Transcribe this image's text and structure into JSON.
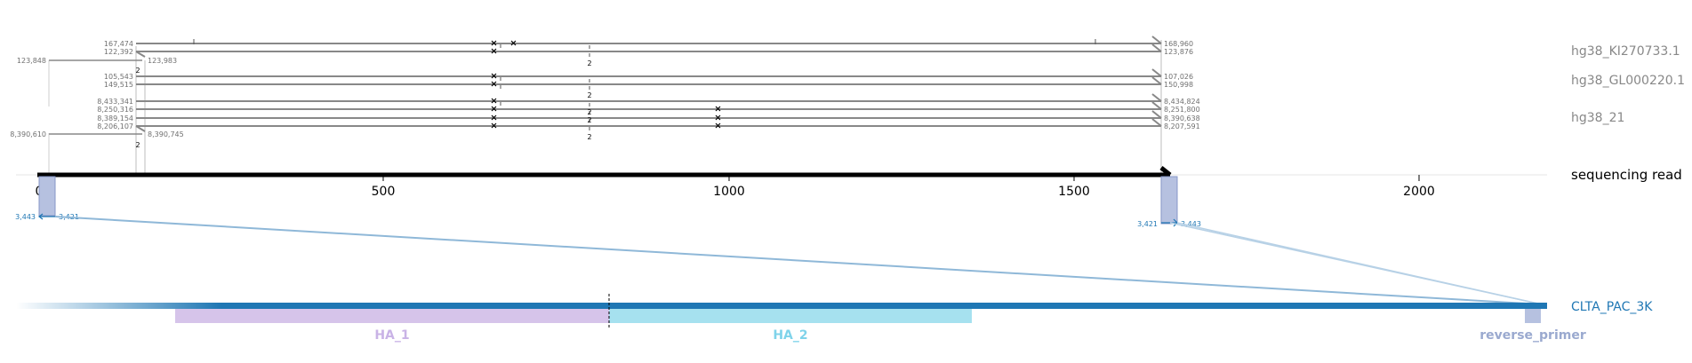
{
  "axis": {
    "ticks": [
      "0",
      "500",
      "1000",
      "1500",
      "2000"
    ],
    "read_label": "sequencing read"
  },
  "references": [
    {
      "name": "hg38_KI270733.1",
      "alignments": [
        {
          "start": "167,474",
          "end": "168,960"
        },
        {
          "start": "122,392",
          "end": "123,876"
        }
      ],
      "connector": {
        "start": "123,848",
        "end": "123,983",
        "count": "2"
      }
    },
    {
      "name": "hg38_GL000220.1",
      "alignments": [
        {
          "start": "105,543",
          "end": "107,026"
        },
        {
          "start": "149,515",
          "end": "150,998"
        }
      ]
    },
    {
      "name": "hg38_21",
      "alignments": [
        {
          "start": "8,433,341",
          "end": "8,434,824"
        },
        {
          "start": "8,250,316",
          "end": "8,251,800"
        },
        {
          "start": "8,389,154",
          "end": "8,390,638"
        },
        {
          "start": "8,206,107",
          "end": "8,207,591"
        }
      ],
      "connector": {
        "start": "8,390,610",
        "end": "8,390,745",
        "count": "2"
      }
    }
  ],
  "mismatch_count_labels": [
    "2",
    "2",
    "2",
    "2",
    "2"
  ],
  "primer_hits": {
    "left": {
      "a": "3,443",
      "b": "3,421"
    },
    "right": {
      "a": "3,421",
      "b": "3,443"
    }
  },
  "target": {
    "name": "CLTA_PAC_3K",
    "features": [
      {
        "name": "HA_1",
        "color": "#d6c4ea"
      },
      {
        "name": "HA_2",
        "color": "#a6e1ef"
      },
      {
        "name": "reverse_primer",
        "color": "#9aa9cf"
      }
    ]
  },
  "colors": {
    "read": "#000000",
    "alignment": "#888888",
    "target": "#1f77b4",
    "primer_block": "#b6c1e0"
  }
}
